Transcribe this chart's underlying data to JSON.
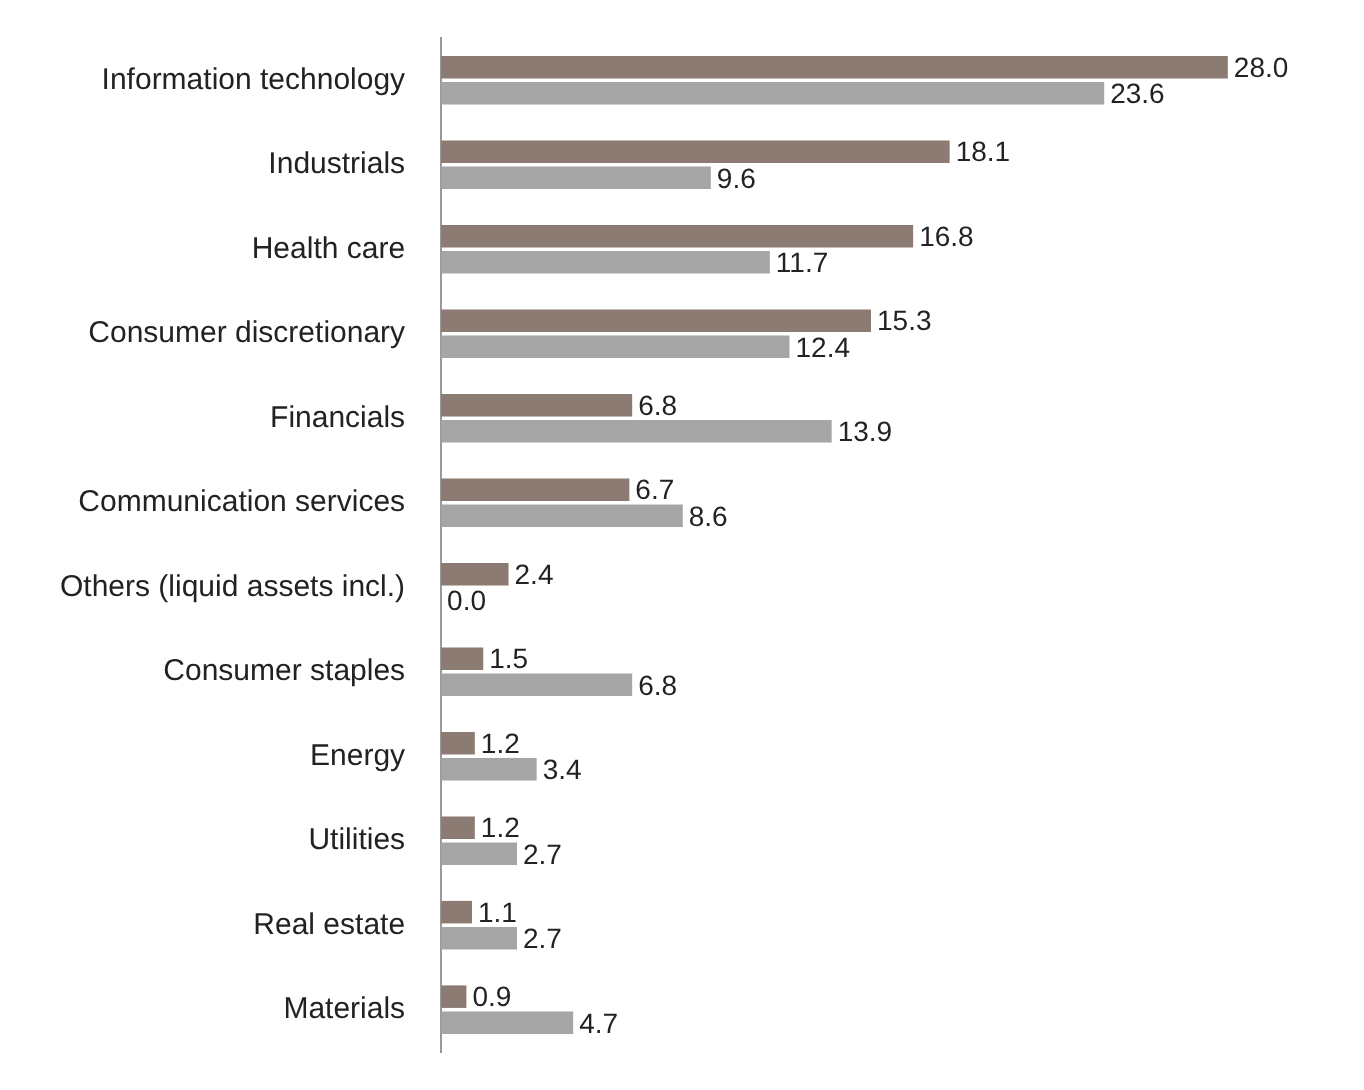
{
  "chart_data": {
    "type": "bar",
    "orientation": "horizontal",
    "categories": [
      "Information technology",
      "Industrials",
      "Health care",
      "Consumer discretionary",
      "Financials",
      "Communication services",
      "Others (liquid assets incl.)",
      "Consumer staples",
      "Energy",
      "Utilities",
      "Real estate",
      "Materials"
    ],
    "series": [
      {
        "color": "#8c7b73",
        "values": [
          28.0,
          18.1,
          16.8,
          15.3,
          6.8,
          6.7,
          2.4,
          1.5,
          1.2,
          1.2,
          1.1,
          0.9
        ],
        "value_labels": [
          "28.0",
          "18.1",
          "16.8",
          "15.3",
          "6.8",
          "6.7",
          "2.4",
          "1.5",
          "1.2",
          "1.2",
          "1.1",
          "0.9"
        ]
      },
      {
        "color": "#a5a5a5",
        "values": [
          23.6,
          9.6,
          11.7,
          12.4,
          13.9,
          8.6,
          0.0,
          6.8,
          3.4,
          2.7,
          2.7,
          4.7
        ],
        "value_labels": [
          "23.6",
          "9.6",
          "11.7",
          "12.4",
          "13.9",
          "8.6",
          "0.0",
          "6.8",
          "3.4",
          "2.7",
          "2.7",
          "4.7"
        ]
      }
    ],
    "grid": false,
    "legend": false,
    "tick_labels": "y"
  }
}
